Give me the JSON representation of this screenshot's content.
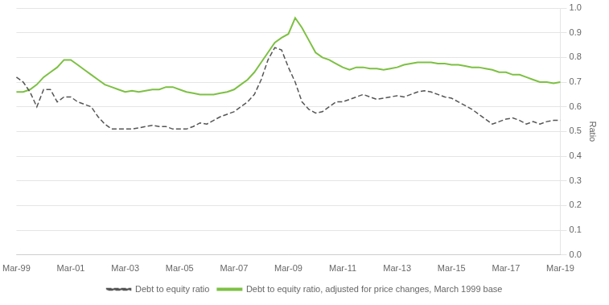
{
  "chart_data": {
    "type": "line",
    "ylabel": "Ratio",
    "categories": [
      "Mar-99",
      null,
      null,
      null,
      null,
      null,
      null,
      null,
      "Mar-01",
      null,
      null,
      null,
      null,
      null,
      null,
      null,
      "Mar-03",
      null,
      null,
      null,
      null,
      null,
      null,
      null,
      "Mar-05",
      null,
      null,
      null,
      null,
      null,
      null,
      null,
      "Mar-07",
      null,
      null,
      null,
      null,
      null,
      null,
      null,
      "Mar-09",
      null,
      null,
      null,
      null,
      null,
      null,
      null,
      "Mar-11",
      null,
      null,
      null,
      null,
      null,
      null,
      null,
      "Mar-13",
      null,
      null,
      null,
      null,
      null,
      null,
      null,
      "Mar-15",
      null,
      null,
      null,
      null,
      null,
      null,
      null,
      "Mar-17",
      null,
      null,
      null,
      null,
      null,
      null,
      null,
      "Mar-19"
    ],
    "series": [
      {
        "name": "Debt to equity ratio",
        "color": "#555555",
        "line_style": "dashed",
        "values": [
          0.72,
          0.7,
          0.66,
          0.6,
          0.67,
          0.67,
          0.62,
          0.64,
          0.64,
          0.62,
          0.61,
          0.6,
          0.56,
          0.53,
          0.51,
          0.51,
          0.51,
          0.51,
          0.515,
          0.52,
          0.525,
          0.52,
          0.52,
          0.51,
          0.51,
          0.51,
          0.52,
          0.535,
          0.53,
          0.545,
          0.56,
          0.57,
          0.58,
          0.6,
          0.62,
          0.65,
          0.71,
          0.79,
          0.84,
          0.83,
          0.76,
          0.7,
          0.62,
          0.59,
          0.575,
          0.58,
          0.6,
          0.62,
          0.62,
          0.63,
          0.64,
          0.65,
          0.64,
          0.63,
          0.635,
          0.64,
          0.645,
          0.64,
          0.65,
          0.66,
          0.665,
          0.66,
          0.65,
          0.64,
          0.635,
          0.62,
          0.605,
          0.59,
          0.57,
          0.55,
          0.53,
          0.54,
          0.55,
          0.555,
          0.545,
          0.53,
          0.54,
          0.53,
          0.54,
          0.545,
          0.545
        ]
      },
      {
        "name": "Debt to equity ratio, adjusted for price changes, March 1999 base",
        "color": "#7dc043",
        "line_style": "solid",
        "values": [
          0.66,
          0.66,
          0.67,
          0.69,
          0.72,
          0.74,
          0.76,
          0.79,
          0.79,
          0.77,
          0.75,
          0.73,
          0.71,
          0.69,
          0.68,
          0.67,
          0.66,
          0.665,
          0.66,
          0.665,
          0.67,
          0.67,
          0.68,
          0.68,
          0.67,
          0.66,
          0.655,
          0.65,
          0.65,
          0.65,
          0.655,
          0.66,
          0.67,
          0.69,
          0.71,
          0.74,
          0.78,
          0.82,
          0.86,
          0.88,
          0.895,
          0.96,
          0.92,
          0.87,
          0.82,
          0.8,
          0.79,
          0.775,
          0.76,
          0.75,
          0.76,
          0.76,
          0.755,
          0.755,
          0.75,
          0.755,
          0.76,
          0.77,
          0.775,
          0.78,
          0.78,
          0.78,
          0.775,
          0.775,
          0.77,
          0.77,
          0.765,
          0.76,
          0.76,
          0.755,
          0.75,
          0.74,
          0.74,
          0.73,
          0.73,
          0.72,
          0.71,
          0.7,
          0.7,
          0.695,
          0.7
        ]
      }
    ],
    "ylim": [
      0.0,
      1.0
    ],
    "yticks": [
      {
        "value": 0.0,
        "label": "0.0"
      },
      0.1,
      0.2,
      0.3,
      0.4,
      0.5,
      0.6,
      0.7,
      0.8,
      0.9,
      {
        "value": 1.0,
        "label": "1.0"
      }
    ],
    "grid": "y",
    "legend": "bottom"
  }
}
